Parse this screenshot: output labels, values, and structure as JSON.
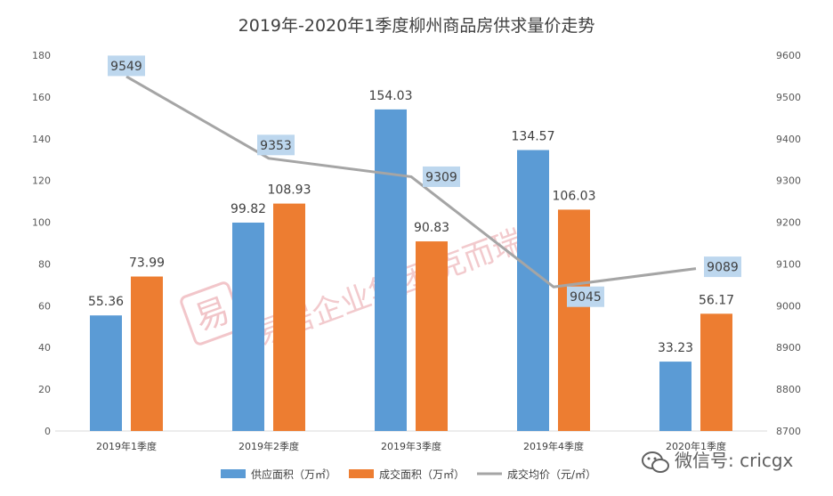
{
  "chart_data": {
    "type": "bar",
    "title": "2019年-2020年1季度柳州商品房供求量价走势",
    "categories": [
      "2019年1季度",
      "2019年2季度",
      "2019年3季度",
      "2019年4季度",
      "2020年1季度"
    ],
    "series": [
      {
        "name": "供应面积（万㎡）",
        "type": "bar",
        "axis": "left",
        "color": "#5b9bd5",
        "values": [
          55.36,
          99.82,
          154.03,
          134.57,
          33.23
        ]
      },
      {
        "name": "成交面积（万㎡）",
        "type": "bar",
        "axis": "left",
        "color": "#ed7d31",
        "values": [
          73.99,
          108.93,
          90.83,
          106.03,
          56.17
        ]
      },
      {
        "name": "成交均价（元/㎡）",
        "type": "line",
        "axis": "right",
        "color": "#a5a5a5",
        "values": [
          9549,
          9353,
          9309,
          9045,
          9089
        ]
      }
    ],
    "y_left": {
      "range": [
        0,
        180
      ],
      "ticks": [
        0,
        20,
        40,
        60,
        80,
        100,
        120,
        140,
        160,
        180
      ]
    },
    "y_right": {
      "range": [
        8700,
        9600
      ],
      "ticks": [
        8700,
        8800,
        8900,
        9000,
        9100,
        9200,
        9300,
        9400,
        9500,
        9600
      ]
    },
    "grid": false,
    "legend_position": "bottom-center",
    "line_label_bg": "#bdd7ee"
  },
  "watermark": {
    "logo_text": "易",
    "text": "易居企业集团·克而瑞"
  },
  "wechat": {
    "text": "微信号: cricgx",
    "icon": "wechat-icon"
  }
}
